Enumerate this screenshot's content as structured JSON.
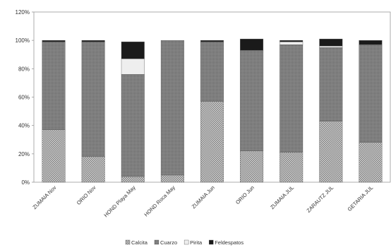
{
  "chart_data": {
    "type": "bar",
    "stacked": true,
    "categories": [
      "ZUMAIA Nov",
      "ORIO Nov",
      "HOND Playa May",
      "HOND Roca May",
      "ZUMAIA Jun",
      "ORIO Jun",
      "ZUMAIA JUL",
      "ZARAUTZ JUL",
      "GETARIA JUL"
    ],
    "series": [
      {
        "name": "Calcita",
        "color": "#b8b8b8",
        "pattern": "checker",
        "values": [
          37,
          18,
          4,
          5,
          57,
          22,
          21,
          43,
          28
        ]
      },
      {
        "name": "Cuarzo",
        "color": "#7a7a7a",
        "pattern": "dots",
        "values": [
          62,
          81,
          72,
          95,
          42,
          71,
          76,
          52,
          69
        ]
      },
      {
        "name": "Pirita",
        "color": "#eeeeee",
        "pattern": "solid",
        "values": [
          0,
          0,
          11,
          0,
          0,
          0,
          2,
          1,
          0
        ]
      },
      {
        "name": "Feldespatos",
        "color": "#1a1a1a",
        "pattern": "solid",
        "values": [
          1,
          1,
          12,
          0,
          1,
          8,
          1,
          5,
          3
        ]
      }
    ],
    "yticks": [
      "0%",
      "20%",
      "40%",
      "60%",
      "80%",
      "100%",
      "120%"
    ],
    "ylim": [
      0,
      120
    ],
    "grid": false,
    "legend_position": "bottom"
  }
}
